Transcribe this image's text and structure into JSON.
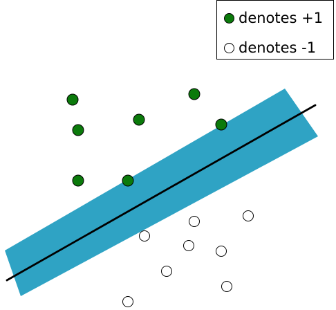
{
  "legend": {
    "positive_label": "denotes +1",
    "negative_label": "denotes -1"
  },
  "colors": {
    "positive_fill": "#0b7a0b",
    "negative_fill": "#ffffff",
    "margin_band": "#2fa3c4",
    "hyperplane": "#000000",
    "outline": "#000000"
  },
  "icons": {
    "positive_marker": "filled-circle",
    "negative_marker": "hollow-circle"
  }
}
